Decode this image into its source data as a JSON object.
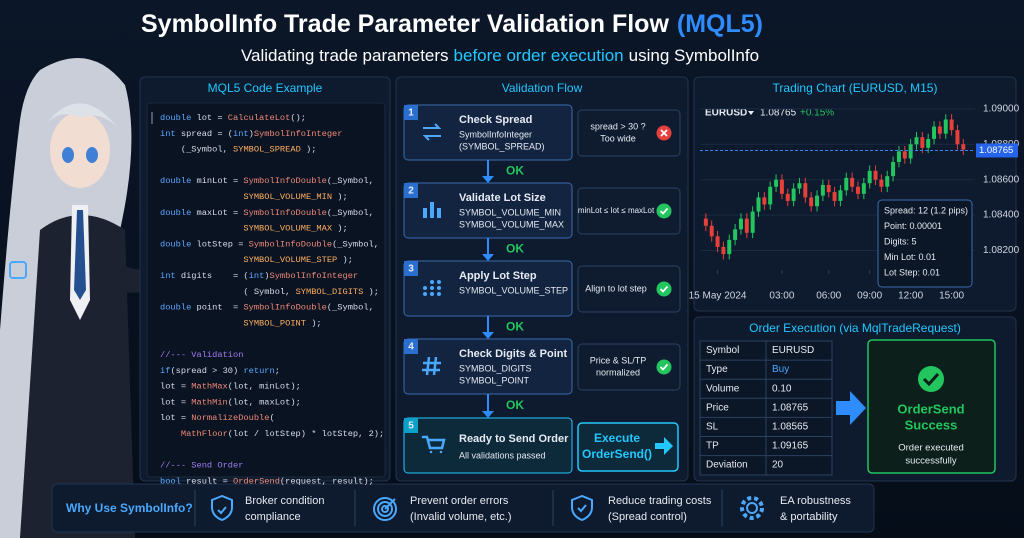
{
  "header": {
    "title": "SymbolInfo Trade Parameter Validation Flow",
    "title_accent": "(MQL5)",
    "subtitle": [
      "Validating trade parameters",
      "before order execution",
      "using SymbolInfo"
    ]
  },
  "code_panel": {
    "title": "MQL5 Code Example",
    "blocks": [
      [
        "double lot = CalculateLot();",
        "int spread = (int)SymbolInfoInteger",
        "    (_Symbol, SYMBOL_SPREAD );"
      ],
      [
        "double minLot = SymbolInfoDouble(_Symbol,",
        "                SYMBOL_VOLUME_MIN );",
        "double maxLot = SymbolInfoDouble(_Symbol,",
        "                SYMBOL_VOLUME_MAX );",
        "double lotStep = SymbolInfoDouble(_Symbol,",
        "                SYMBOL_VOLUME_STEP );",
        "int digits    = (int)SymbolInfoInteger",
        "                ( Symbol, SYMBOL_DIGITS );",
        "double point  = SymbolInfoDouble(_Symbol,",
        "                SYMBOL_POINT );"
      ],
      [
        "//--- Validation",
        "if(spread > 30) return;",
        "lot = MathMax(lot, minLot);",
        "lot = MathMin(lot, maxLot);",
        "lot = NormalizeDouble(",
        "    MathFloor(lot / lotStep) * lotStep, 2);"
      ],
      [
        "//--- Send Order",
        "bool result = OrderSend(request, result);"
      ]
    ]
  },
  "flow": {
    "title": "Validation Flow",
    "connector_label": "OK",
    "steps": [
      {
        "number": "1",
        "title": "Check Spread",
        "details": [
          "SymbolInfoInteger",
          "(SYMBOL_SPREAD)"
        ],
        "check": [
          "spread > 30 ?",
          "Too wide"
        ],
        "status": "fail"
      },
      {
        "number": "2",
        "title": "Validate Lot Size",
        "details": [
          "SYMBOL_VOLUME_MIN",
          "SYMBOL_VOLUME_MAX"
        ],
        "check": [
          "minLot ≤ lot ≤ maxLot"
        ],
        "status": "pass"
      },
      {
        "number": "3",
        "title": "Apply Lot Step",
        "details": [
          "SYMBOL_VOLUME_STEP"
        ],
        "check": [
          "Align to lot step"
        ],
        "status": "pass"
      },
      {
        "number": "4",
        "title": "Check Digits & Point",
        "details": [
          "SYMBOL_DIGITS",
          "SYMBOL_POINT"
        ],
        "check": [
          "Price & SL/TP",
          "normalized"
        ],
        "status": "pass"
      }
    ],
    "final": {
      "number": "5",
      "title": "Ready to Send Order",
      "detail": "All validations passed",
      "action": [
        "Execute",
        "OrderSend()"
      ]
    }
  },
  "chart_data": {
    "type": "candlestick",
    "title": "Trading Chart (EURUSD, M15)",
    "symbol": "EURUSD",
    "change": "+0.15%",
    "current_price": 1.08765,
    "up_color": "#22c55e",
    "down_color": "#e5403a",
    "ylim": [
      1.0809,
      1.0905
    ],
    "yticks": [
      {
        "value": 1.09,
        "label": "1.09000"
      },
      {
        "value": 1.088,
        "label": "1.08800"
      },
      {
        "value": 1.086,
        "label": "1.08600"
      },
      {
        "value": 1.084,
        "label": "1.08400"
      },
      {
        "value": 1.082,
        "label": "1.08200"
      }
    ],
    "xlim": [
      -1,
      46
    ],
    "xticks": [
      {
        "value": 2,
        "label": "15 May 2024"
      },
      {
        "value": 13,
        "label": "03:00"
      },
      {
        "value": 21,
        "label": "06:00"
      },
      {
        "value": 28,
        "label": "09:00"
      },
      {
        "value": 35,
        "label": "12:00"
      },
      {
        "value": 42,
        "label": "15:00"
      }
    ],
    "open": [
      1.0838,
      1.0834,
      1.0828,
      1.0822,
      1.0818,
      1.0826,
      1.0832,
      1.0838,
      1.083,
      1.0842,
      1.085,
      1.0846,
      1.0856,
      1.086,
      1.0852,
      1.0848,
      1.0855,
      1.0858,
      1.085,
      1.0845,
      1.0851,
      1.0857,
      1.0853,
      1.0848,
      1.0854,
      1.0861,
      1.0856,
      1.0852,
      1.0858,
      1.0865,
      1.086,
      1.0856,
      1.0862,
      1.087,
      1.0876,
      1.0872,
      1.088,
      1.0884,
      1.0878,
      1.0883,
      1.089,
      1.0886,
      1.0894,
      1.0888,
      1.088
    ],
    "high": [
      1.0841,
      1.0837,
      1.0831,
      1.0825,
      1.0829,
      1.0835,
      1.0841,
      1.0841,
      1.0845,
      1.0853,
      1.0853,
      1.0859,
      1.0863,
      1.0863,
      1.0855,
      1.0858,
      1.0861,
      1.0861,
      1.0853,
      1.0854,
      1.086,
      1.086,
      1.0856,
      1.0857,
      1.0864,
      1.0864,
      1.0859,
      1.0861,
      1.0868,
      1.0868,
      1.0863,
      1.0865,
      1.0873,
      1.0879,
      1.0879,
      1.0883,
      1.0887,
      1.0887,
      1.0886,
      1.0893,
      1.0893,
      1.0897,
      1.0897,
      1.0891,
      1.0883
    ],
    "low": [
      1.0831,
      1.0825,
      1.0819,
      1.0815,
      1.0815,
      1.0823,
      1.0829,
      1.0827,
      1.0827,
      1.0839,
      1.0843,
      1.0843,
      1.0853,
      1.0849,
      1.0845,
      1.0845,
      1.0852,
      1.0847,
      1.0842,
      1.0842,
      1.0848,
      1.085,
      1.0845,
      1.0845,
      1.0851,
      1.0853,
      1.0849,
      1.0849,
      1.0855,
      1.0857,
      1.0853,
      1.0853,
      1.0859,
      1.0867,
      1.0869,
      1.0869,
      1.0877,
      1.0875,
      1.0875,
      1.088,
      1.0883,
      1.0883,
      1.0885,
      1.0877,
      1.0874
    ],
    "close": [
      1.0834,
      1.0828,
      1.0822,
      1.0818,
      1.0826,
      1.0832,
      1.0838,
      1.083,
      1.0842,
      1.085,
      1.0846,
      1.0856,
      1.086,
      1.0852,
      1.0848,
      1.0855,
      1.0858,
      1.085,
      1.0845,
      1.0851,
      1.0857,
      1.0853,
      1.0848,
      1.0854,
      1.0861,
      1.0856,
      1.0852,
      1.0858,
      1.0865,
      1.086,
      1.0856,
      1.0862,
      1.087,
      1.0876,
      1.0872,
      1.088,
      1.0884,
      1.0878,
      1.0883,
      1.089,
      1.0886,
      1.0894,
      1.0888,
      1.088,
      1.0877
    ],
    "info_box": [
      "Spread: 12 (1.2 pips)",
      "Point: 0.00001",
      "Digits: 5",
      "Min Lot: 0.01",
      "Lot Step: 0.01"
    ]
  },
  "order_execution": {
    "title": "Order Execution (via MqlTradeRequest)",
    "rows": [
      [
        "Symbol",
        "EURUSD"
      ],
      [
        "Type",
        "Buy"
      ],
      [
        "Volume",
        "0.10"
      ],
      [
        "Price",
        "1.08765"
      ],
      [
        "SL",
        "1.08565"
      ],
      [
        "TP",
        "1.09165"
      ],
      [
        "Deviation",
        "20"
      ]
    ],
    "result": {
      "title": [
        "OrderSend",
        "Success"
      ],
      "message": [
        "Order executed",
        "successfully"
      ]
    }
  },
  "benefits": {
    "title": "Why Use SymbolInfo?",
    "items": [
      [
        "Broker condition",
        "compliance"
      ],
      [
        "Prevent order errors",
        "(Invalid volume, etc.)"
      ],
      [
        "Reduce trading costs",
        "(Spread control)"
      ],
      [
        "EA robustness",
        "& portability"
      ]
    ]
  }
}
